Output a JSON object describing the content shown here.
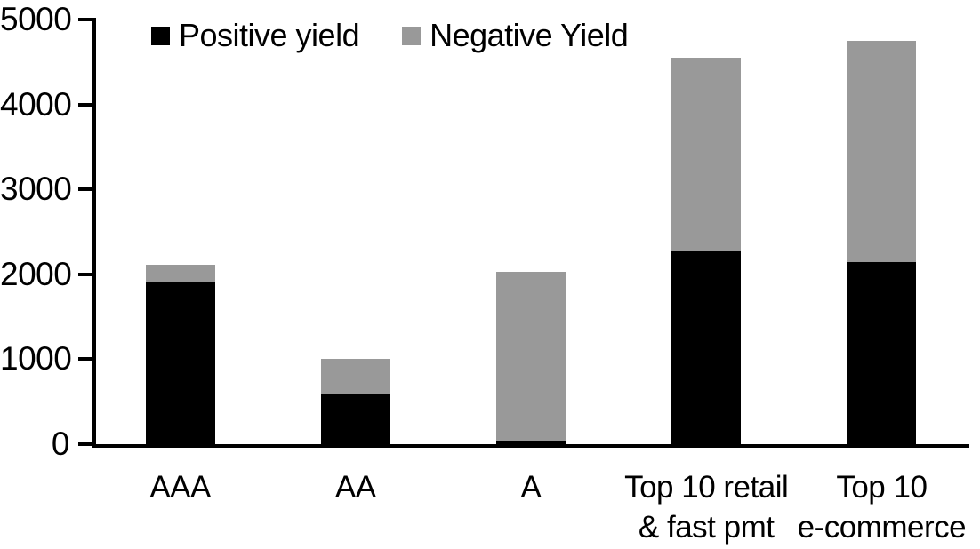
{
  "chart_data": {
    "type": "bar",
    "stacked": true,
    "title": "",
    "xlabel": "",
    "ylabel": "",
    "categories": [
      "AAA",
      "AA",
      "A",
      "Top 10 retail\n& fast pmt",
      "Top 10\ne-commerce"
    ],
    "series": [
      {
        "name": "Positive yield",
        "color": "#000000",
        "values": [
          1900,
          600,
          40,
          2280,
          2140
        ]
      },
      {
        "name": "Negative Yield",
        "color": "#999999",
        "values": [
          210,
          400,
          1990,
          2270,
          2610
        ]
      }
    ],
    "totals": [
      2110,
      1000,
      2030,
      4550,
      4750
    ],
    "ylim": [
      0,
      5000
    ],
    "yticks": [
      0,
      1000,
      2000,
      3000,
      4000,
      5000
    ],
    "grid": false,
    "legend_position": "top-left-inside",
    "axis_color": "#000000",
    "background_color": "#ffffff"
  }
}
